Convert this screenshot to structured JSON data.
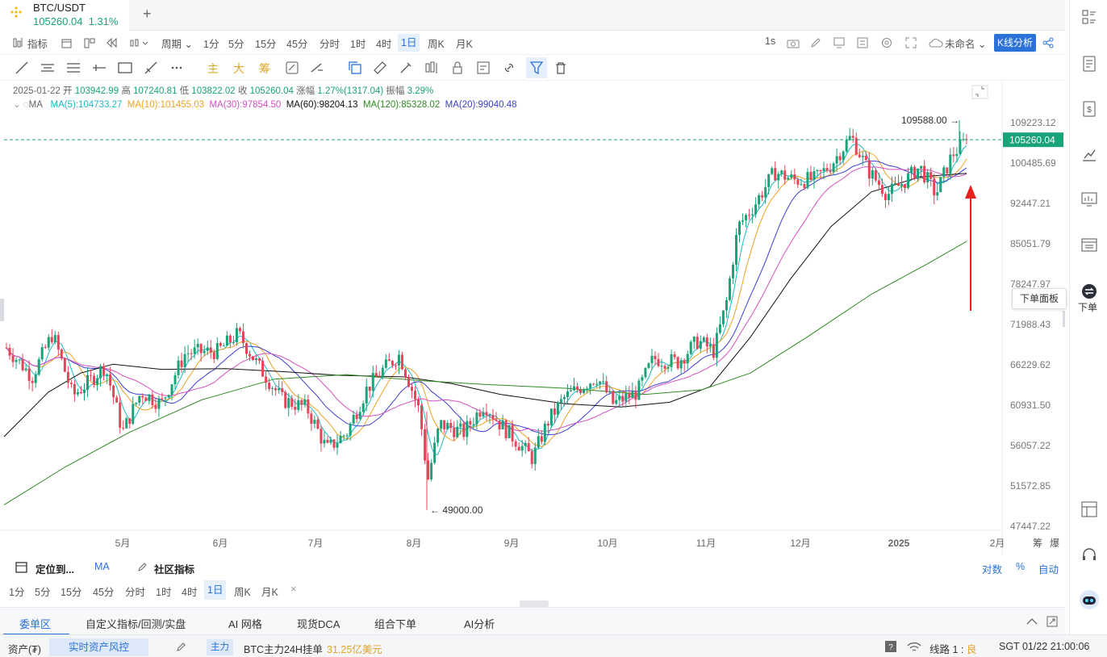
{
  "tab": {
    "pair": "BTC/USDT",
    "price": "105260.04",
    "change": "1.31%"
  },
  "toolbar1": {
    "indicator": "指标",
    "period_label": "周期",
    "periods": [
      "1分",
      "5分",
      "15分",
      "45分",
      "分时",
      "1时",
      "4时",
      "1日",
      "周K",
      "月K"
    ],
    "active_period": "1日",
    "interval": "1s",
    "unnamed": "未命名",
    "kline_analysis": "K线分析"
  },
  "toolbar2": {
    "main": "主",
    "big": "大",
    "chip": "筹"
  },
  "chart_info": {
    "date": "2025-01-22",
    "open_label": "开",
    "open": "103942.99",
    "high_label": "高",
    "high": "107240.81",
    "low_label": "低",
    "low": "103822.02",
    "close_label": "收",
    "close": "105260.04",
    "change_label": "涨幅",
    "change": "1.27%(1317.04)",
    "amplitude_label": "振幅",
    "amplitude": "3.29%",
    "ma_label": "MA",
    "ma5": "MA(5):104733.27",
    "ma10": "MA(10):101455.03",
    "ma30": "MA(30):97854.50",
    "ma60": "MA(60):98204.13",
    "ma120": "MA(120):85328.02",
    "ma20": "MA(20):99040.48"
  },
  "chart_data": {
    "type": "candlestick",
    "y_ticks": [
      "109223.12",
      "100485.69",
      "92447.21",
      "85051.79",
      "78247.97",
      "71988.43",
      "66229.62",
      "60931.50",
      "56057.22",
      "51572.85",
      "47447.22"
    ],
    "x_ticks": [
      "5月",
      "6月",
      "7月",
      "8月",
      "9月",
      "10月",
      "11月",
      "12月",
      "2025",
      "2月"
    ],
    "current_price": "105260.04",
    "max_label": "109588.00",
    "min_label": "49000.00",
    "log_scale": true,
    "colors": {
      "up": "#1aa37a",
      "down": "#e5455a",
      "ma5": "#20b8c4",
      "ma10": "#f0a225",
      "ma30": "#d34fc2",
      "ma60": "#111111",
      "ma120": "#2f8a23",
      "ma20": "#3b3fd0"
    }
  },
  "bottom": {
    "locate": "定位到...",
    "ma": "MA",
    "community": "社区指标",
    "log": "对数",
    "percent": "%",
    "auto": "自动",
    "periods": [
      "1分",
      "5分",
      "15分",
      "45分",
      "分时",
      "1时",
      "4时",
      "1日",
      "周K",
      "月K"
    ],
    "close": "×"
  },
  "bottom_tabs": [
    "委单区",
    "自定义指标/回测/实盘",
    "AI 网格",
    "现货DCA",
    "组合下单",
    "AI分析"
  ],
  "status": {
    "assets": "资产(₮)",
    "risk": "实时资产风控",
    "main_tag": "主力",
    "btc_orders": "BTC主力24H挂单",
    "btc_amount": "31.25亿美元",
    "route": "线路 1 :",
    "route_quality": "良",
    "time": "SGT  01/22 21:00:06"
  },
  "sidebar": {
    "order": "下单",
    "tooltip": "下单面板"
  }
}
